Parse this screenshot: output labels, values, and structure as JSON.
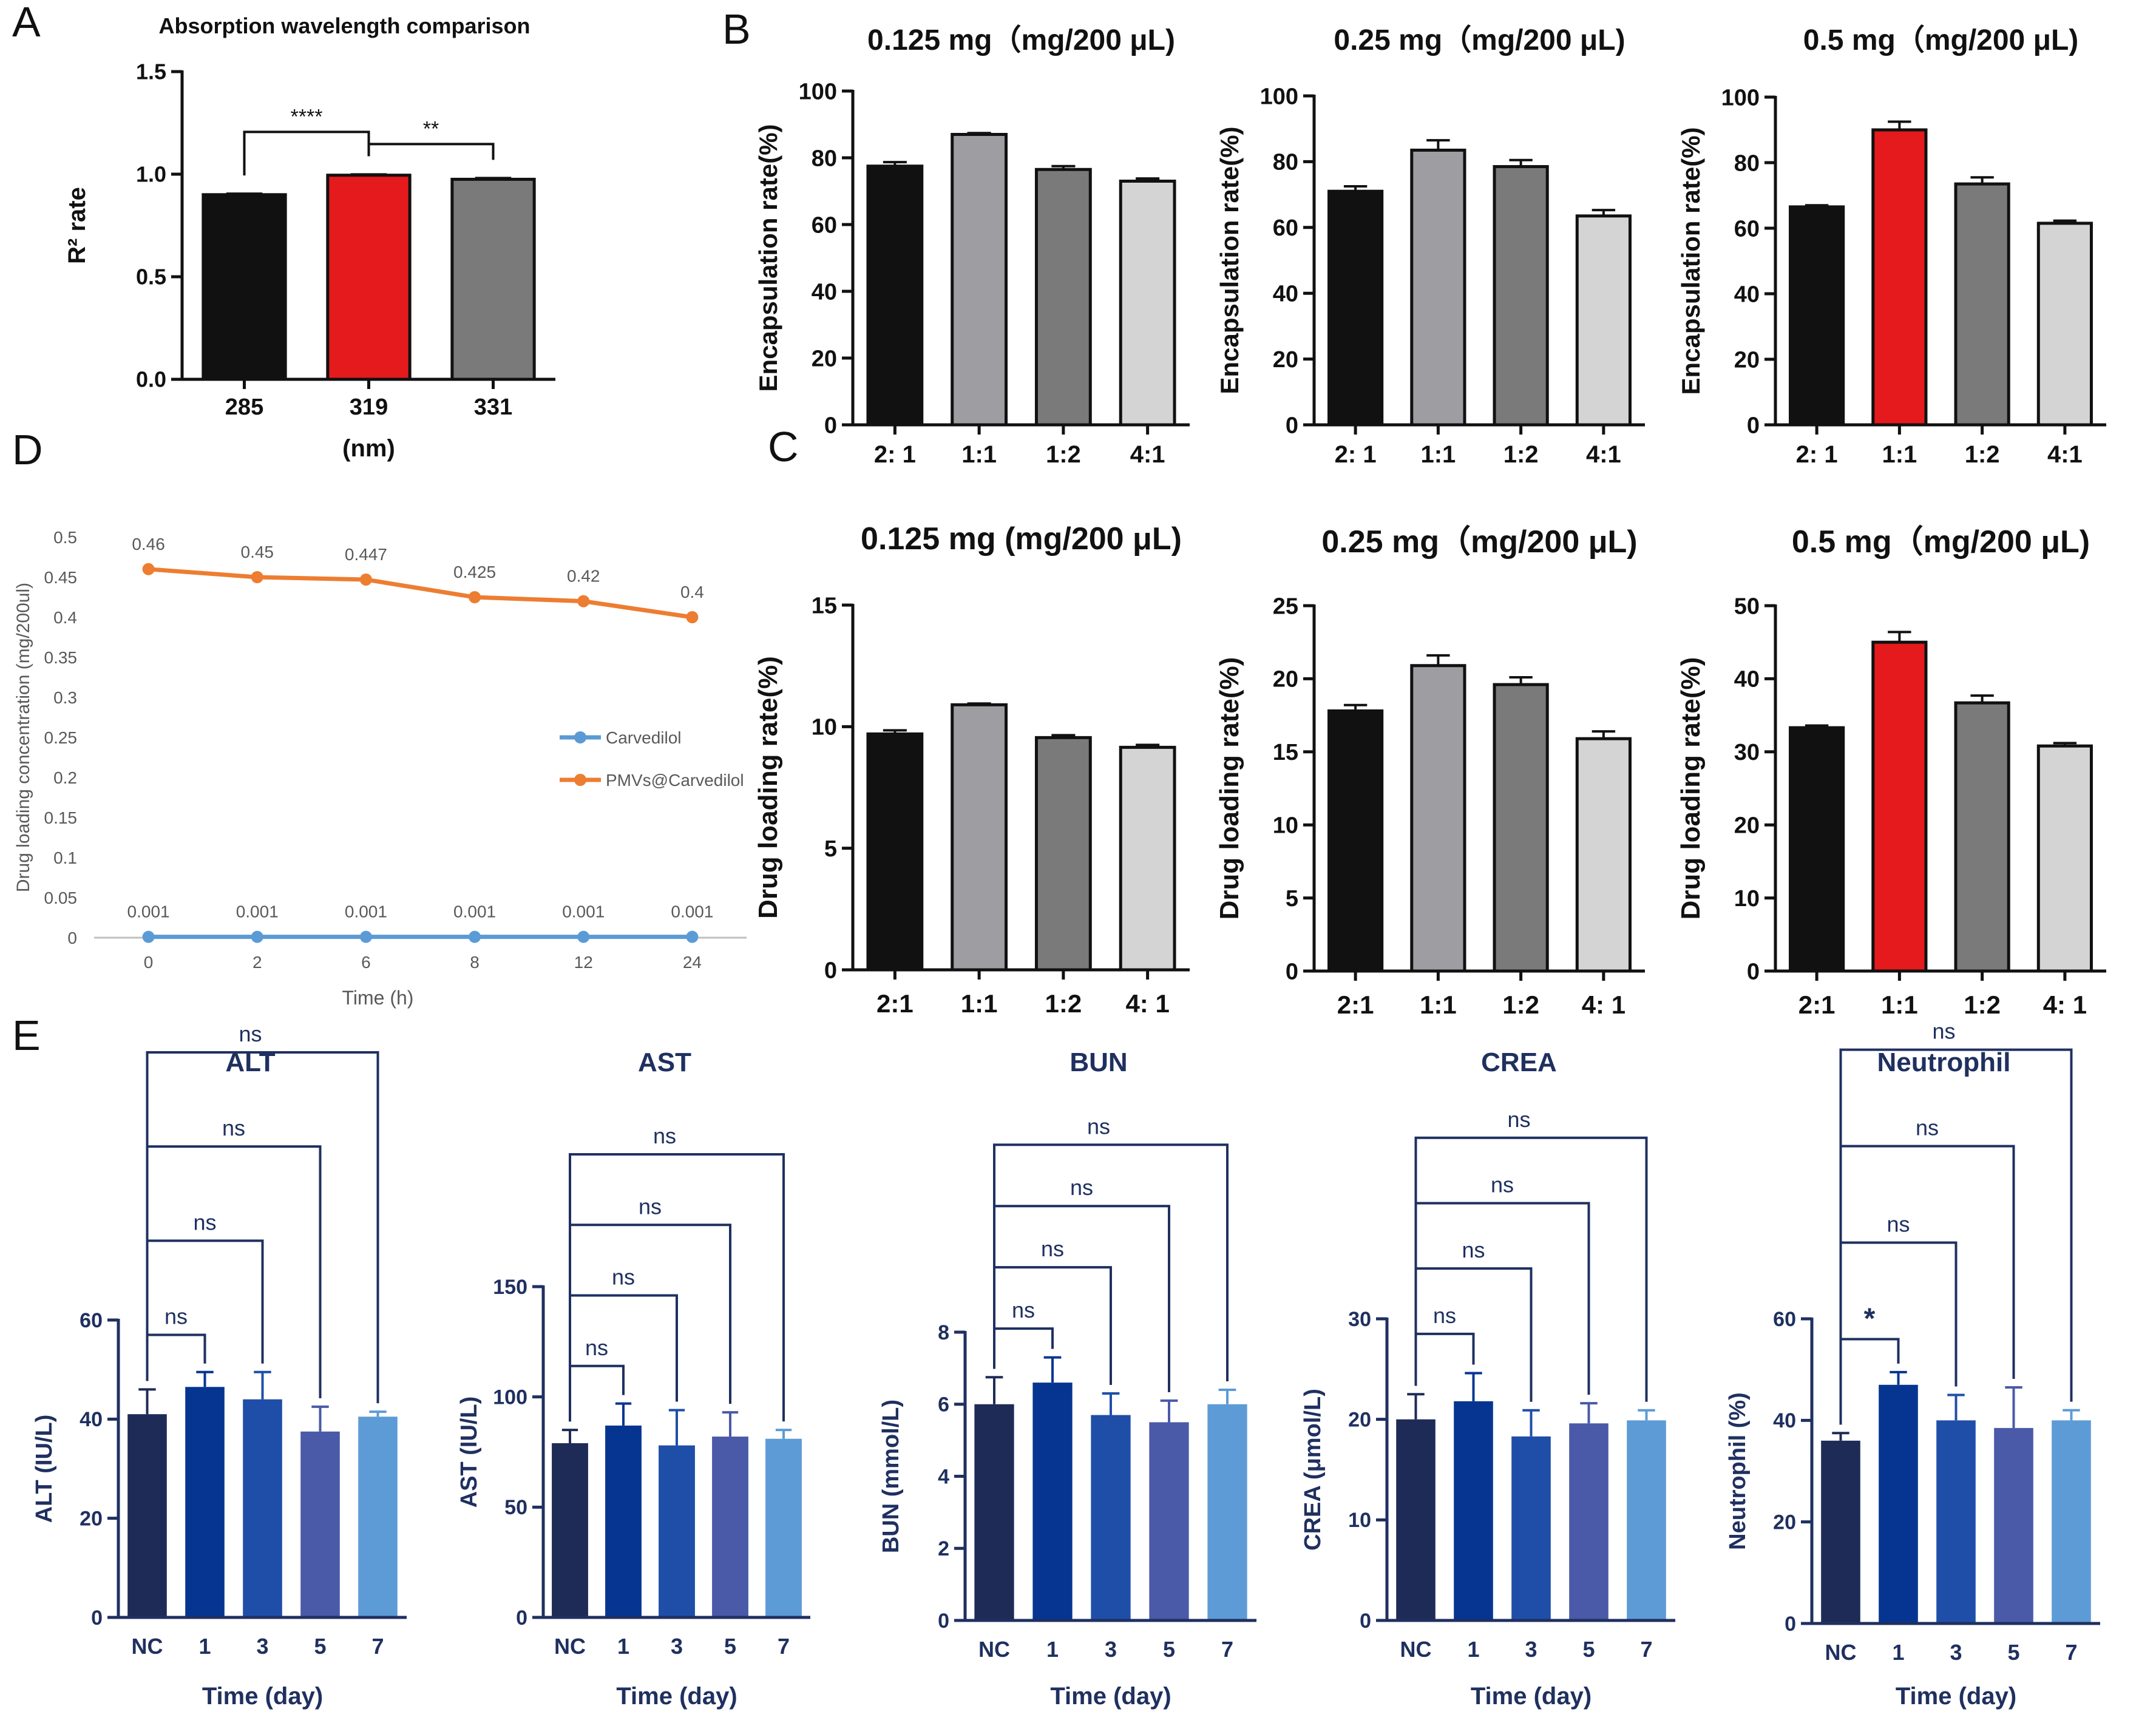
{
  "figure": {
    "panel_letters": [
      "A",
      "B",
      "C",
      "D",
      "E"
    ]
  },
  "colors": {
    "black": "#111111",
    "red": "#e41a1c",
    "gray_light": "#9e9ea2",
    "gray_mid": "#7a7a7a",
    "gray_pale": "#d4d4d4",
    "navy_text": "#1f3060",
    "orange": "#ed7d31",
    "blue_line": "#5b9bd5",
    "e_bar_colors": [
      "#1f2b57",
      "#063591",
      "#1f4ea8",
      "#4a5aa8",
      "#5d9bd6"
    ]
  },
  "chart_data": [
    {
      "id": "A",
      "type": "bar",
      "title": "Absorption wavelength comparison",
      "categories": [
        "285",
        "319",
        "331"
      ],
      "values": [
        0.9,
        0.995,
        0.975
      ],
      "errors": [
        0.005,
        0.004,
        0.006
      ],
      "bar_colors": [
        "black",
        "red",
        "gray_mid"
      ],
      "xlabel": "(nm)",
      "ylabel": "R² rate",
      "ylim": [
        0,
        1.5
      ],
      "yticks": [
        "0.0",
        "0.5",
        "1.0",
        "1.5"
      ],
      "significance": [
        {
          "from": 0,
          "to": 1,
          "label": "****"
        },
        {
          "from": 1,
          "to": 2,
          "label": "**"
        }
      ]
    },
    {
      "id": "B1",
      "type": "bar",
      "title": "0.125 mg（mg/200 μL)",
      "categories": [
        "2: 1",
        "1:1",
        "1:2",
        "4:1"
      ],
      "values": [
        77.5,
        87,
        76.5,
        73
      ],
      "errors": [
        1.2,
        0.4,
        1.0,
        0.8
      ],
      "bar_colors": [
        "black",
        "gray_light",
        "gray_mid",
        "gray_pale"
      ],
      "ylabel": "Encapsulation rate(%)",
      "ylim": [
        0,
        100
      ],
      "yticks": [
        "0",
        "20",
        "40",
        "60",
        "80",
        "100"
      ]
    },
    {
      "id": "B2",
      "type": "bar",
      "title": "0.25 mg（mg/200 μL)",
      "categories": [
        "2: 1",
        "1:1",
        "1:2",
        "4:1"
      ],
      "values": [
        71,
        83.5,
        78.5,
        63.5
      ],
      "errors": [
        1.5,
        3.0,
        2.0,
        1.8
      ],
      "bar_colors": [
        "black",
        "gray_light",
        "gray_mid",
        "gray_pale"
      ],
      "ylabel": "Encapsulation rate(%)",
      "ylim": [
        0,
        100
      ],
      "yticks": [
        "0",
        "20",
        "40",
        "60",
        "80",
        "100"
      ]
    },
    {
      "id": "B3",
      "type": "bar",
      "title": "0.5 mg（mg/200 μL)",
      "categories": [
        "2: 1",
        "1:1",
        "1:2",
        "4:1"
      ],
      "values": [
        66.5,
        90,
        73.5,
        61.5
      ],
      "errors": [
        0.5,
        2.5,
        2.0,
        0.8
      ],
      "bar_colors": [
        "black",
        "red",
        "gray_mid",
        "gray_pale"
      ],
      "ylabel": "Encapsulation rate(%)",
      "ylim": [
        0,
        100
      ],
      "yticks": [
        "0",
        "20",
        "40",
        "60",
        "80",
        "100"
      ]
    },
    {
      "id": "C1",
      "type": "bar",
      "title": "0.125 mg (mg/200 μL)",
      "categories": [
        "2:1",
        "1:1",
        "1:2",
        "4: 1"
      ],
      "values": [
        9.7,
        10.9,
        9.55,
        9.15
      ],
      "errors": [
        0.15,
        0.05,
        0.1,
        0.1
      ],
      "bar_colors": [
        "black",
        "gray_light",
        "gray_mid",
        "gray_pale"
      ],
      "ylabel": "Drug loading rate(%)",
      "ylim": [
        0,
        15
      ],
      "yticks": [
        "0",
        "5",
        "10",
        "15"
      ]
    },
    {
      "id": "C2",
      "type": "bar",
      "title": "0.25 mg（mg/200 μL)",
      "categories": [
        "2:1",
        "1:1",
        "1:2",
        "4: 1"
      ],
      "values": [
        17.8,
        20.9,
        19.6,
        15.9
      ],
      "errors": [
        0.4,
        0.7,
        0.5,
        0.5
      ],
      "bar_colors": [
        "black",
        "gray_light",
        "gray_mid",
        "gray_pale"
      ],
      "ylabel": "Drug loading rate(%)",
      "ylim": [
        0,
        25
      ],
      "yticks": [
        "0",
        "5",
        "10",
        "15",
        "20",
        "25"
      ]
    },
    {
      "id": "C3",
      "type": "bar",
      "title": "0.5 mg（mg/200 μL)",
      "categories": [
        "2:1",
        "1:1",
        "1:2",
        "4: 1"
      ],
      "values": [
        33.3,
        45,
        36.7,
        30.8
      ],
      "errors": [
        0.3,
        1.4,
        1.0,
        0.4
      ],
      "bar_colors": [
        "black",
        "red",
        "gray_mid",
        "gray_pale"
      ],
      "ylabel": "Drug loading rate(%)",
      "ylim": [
        0,
        50
      ],
      "yticks": [
        "0",
        "10",
        "20",
        "30",
        "40",
        "50"
      ]
    },
    {
      "id": "D",
      "type": "line",
      "categories": [
        "0",
        "2",
        "6",
        "8",
        "12",
        "24"
      ],
      "series": [
        {
          "name": "Carvedilol",
          "color": "blue_line",
          "values": [
            0.001,
            0.001,
            0.001,
            0.001,
            0.001,
            0.001
          ],
          "labels": [
            "0.001",
            "0.001",
            "0.001",
            "0.001",
            "0.001",
            "0.001"
          ]
        },
        {
          "name": "PMVs@Carvedilol",
          "color": "orange",
          "values": [
            0.46,
            0.45,
            0.447,
            0.425,
            0.42,
            0.4
          ],
          "labels": [
            "0.46",
            "0.45",
            "0.447",
            "0.425",
            "0.42",
            "0.4"
          ]
        }
      ],
      "xlabel": "Time (h)",
      "ylabel": "Drug loading concentration (mg/200ul)",
      "ylim": [
        0,
        0.5
      ],
      "yticks": [
        "0",
        "0.05",
        "0.1",
        "0.15",
        "0.2",
        "0.25",
        "0.3",
        "0.35",
        "0.4",
        "0.45",
        "0.5"
      ]
    },
    {
      "id": "E1",
      "type": "bar",
      "title": "ALT",
      "categories": [
        "NC",
        "1",
        "3",
        "5",
        "7"
      ],
      "values": [
        41,
        46.5,
        44,
        37.5,
        40.5
      ],
      "errors": [
        5,
        3,
        5.5,
        5,
        1
      ],
      "xlabel": "Time (day)",
      "ylabel": "ALT (IU/L)",
      "ylim": [
        0,
        60
      ],
      "yticks": [
        "0",
        "20",
        "40",
        "60"
      ],
      "brackets": [
        {
          "to": 1,
          "label": "ns",
          "value": 57
        },
        {
          "to": 2,
          "label": "ns",
          "value": 76
        },
        {
          "to": 3,
          "label": "ns",
          "value": 95
        },
        {
          "to": 4,
          "label": "ns",
          "value": 114
        }
      ]
    },
    {
      "id": "E2",
      "type": "bar",
      "title": "AST",
      "categories": [
        "NC",
        "1",
        "3",
        "5",
        "7"
      ],
      "values": [
        79,
        87,
        78,
        82,
        81
      ],
      "errors": [
        6,
        10,
        16,
        11,
        4
      ],
      "xlabel": "Time (day)",
      "ylabel": "AST (IU/L)",
      "ylim": [
        0,
        150
      ],
      "yticks": [
        "0",
        "50",
        "100",
        "150"
      ],
      "brackets": [
        {
          "to": 1,
          "label": "ns",
          "value": 114
        },
        {
          "to": 2,
          "label": "ns",
          "value": 146
        },
        {
          "to": 3,
          "label": "ns",
          "value": 178
        },
        {
          "to": 4,
          "label": "ns",
          "value": 210
        }
      ]
    },
    {
      "id": "E3",
      "type": "bar",
      "title": "BUN",
      "categories": [
        "NC",
        "1",
        "3",
        "5",
        "7"
      ],
      "values": [
        6.0,
        6.6,
        5.7,
        5.5,
        6.0
      ],
      "errors": [
        0.75,
        0.7,
        0.6,
        0.6,
        0.4
      ],
      "xlabel": "Time (day)",
      "ylabel": "BUN (mmol/L)",
      "ylim": [
        0,
        8
      ],
      "yticks": [
        "0",
        "2",
        "4",
        "6",
        "8"
      ],
      "brackets": [
        {
          "to": 1,
          "label": "ns",
          "value": 8.1
        },
        {
          "to": 2,
          "label": "ns",
          "value": 9.8
        },
        {
          "to": 3,
          "label": "ns",
          "value": 11.5
        },
        {
          "to": 4,
          "label": "ns",
          "value": 13.2
        }
      ]
    },
    {
      "id": "E4",
      "type": "bar",
      "title": "CREA",
      "categories": [
        "NC",
        "1",
        "3",
        "5",
        "7"
      ],
      "values": [
        20,
        21.8,
        18.3,
        19.6,
        19.9
      ],
      "errors": [
        2.5,
        2.8,
        2.6,
        2.0,
        1.0
      ],
      "xlabel": "Time (day)",
      "ylabel": "CREA (μmol/L)",
      "ylim": [
        0,
        30
      ],
      "yticks": [
        "0",
        "10",
        "20",
        "30"
      ],
      "brackets": [
        {
          "to": 1,
          "label": "ns",
          "value": 28.5
        },
        {
          "to": 2,
          "label": "ns",
          "value": 35
        },
        {
          "to": 3,
          "label": "ns",
          "value": 41.5
        },
        {
          "to": 4,
          "label": "ns",
          "value": 48
        }
      ]
    },
    {
      "id": "E5",
      "type": "bar",
      "title": "Neutrophil",
      "categories": [
        "NC",
        "1",
        "3",
        "5",
        "7"
      ],
      "values": [
        36,
        47,
        40,
        38.5,
        40
      ],
      "errors": [
        1.5,
        2.5,
        5,
        8,
        2
      ],
      "xlabel": "Time (day)",
      "ylabel": "Neutrophil (%)",
      "ylim": [
        0,
        60
      ],
      "yticks": [
        "0",
        "20",
        "40",
        "60"
      ],
      "brackets": [
        {
          "to": 1,
          "label": "*",
          "value": 56
        },
        {
          "to": 2,
          "label": "ns",
          "value": 75
        },
        {
          "to": 3,
          "label": "ns",
          "value": 94
        },
        {
          "to": 4,
          "label": "ns",
          "value": 113
        }
      ]
    }
  ]
}
